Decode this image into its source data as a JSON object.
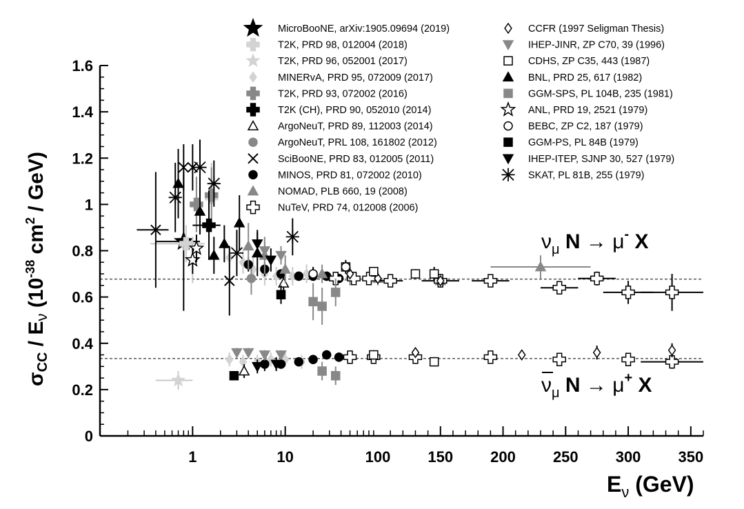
{
  "chart_data": {
    "type": "scatter",
    "title": "",
    "ylabel_parts": {
      "sigma": "σ",
      "cc": "CC",
      "mid": " / E",
      "nu": "ν",
      "open": " (10",
      "exp": "-38",
      "rest": " cm",
      "sq": "2",
      "end": " / GeV)"
    },
    "xlabel_parts": {
      "e": "E",
      "nu": "ν",
      "rest": " (GeV)"
    },
    "ylim": [
      0,
      1.6
    ],
    "xaxis": {
      "log_range": [
        0.1,
        100
      ],
      "linear_range": [
        100,
        360
      ],
      "ticks_log": [
        "1",
        "10",
        "100"
      ],
      "ticks_lin": [
        "150",
        "200",
        "250",
        "300",
        "350"
      ]
    },
    "yticks": [
      "0",
      "0.2",
      "0.4",
      "0.6",
      "0.8",
      "1",
      "1.2",
      "1.4",
      "1.6"
    ],
    "reference_lines": [
      {
        "name": "neutrino",
        "y": 0.677
      },
      {
        "name": "antineutrino",
        "y": 0.334
      }
    ],
    "annotations": {
      "nu": {
        "nu": "ν",
        "sub": "μ",
        "n": " N ",
        "arrow": "→",
        "mu": " μ",
        "sup": "-",
        "x": " X"
      },
      "nubar": {
        "nu": "ν",
        "sub": "μ",
        "n": " N ",
        "arrow": "→",
        "mu": " μ",
        "sup": "+",
        "x": " X"
      }
    },
    "legend_left": [
      "MicroBooNE, arXiv:1905.09694 (2019)",
      "T2K, PRD 98, 012004 (2018)",
      "T2K, PRD 96, 052001 (2017)",
      "MINERvA, PRD 95, 072009 (2017)",
      "T2K, PRD 93, 072002  (2016)",
      "T2K (CH), PRD 90, 052010 (2014)",
      "ArgoNeuT, PRD 89, 112003 (2014)",
      "ArgoNeuT, PRL 108, 161802 (2012)",
      "SciBooNE, PRD 83, 012005 (2011)",
      "MINOS, PRD 81, 072002 (2010)",
      "NOMAD, PLB 660, 19 (2008)",
      "NuTeV, PRD 74, 012008 (2006)"
    ],
    "legend_right": [
      "CCFR (1997 Seligman Thesis)",
      "IHEP-JINR, ZP C70, 39 (1996)",
      "CDHS, ZP C35, 443 (1987)",
      "BNL, PRD 25, 617 (1982)",
      "GGM-SPS, PL 104B, 235 (1981)",
      "ANL, PRD 19, 2521 (1979)",
      "BEBC, ZP C2, 187 (1979)",
      "GGM-PS, PL 84B (1979)",
      "IHEP-ITEP, SJNP 30, 527 (1979)",
      "SKAT, PL 81B, 255 (1979)"
    ],
    "series": [
      {
        "name": "MicroBooNE, arXiv:1905.09694 (2019)",
        "points": [
          {
            "x": 0.8,
            "y": 0.84,
            "ey": 0.3,
            "ex": 0.4
          }
        ]
      },
      {
        "name": "T2K, PRD 98, 012004 (2018)",
        "points": [
          {
            "x": 0.85,
            "y": 0.83,
            "ey": 0.08,
            "ex": 0.5
          },
          {
            "x": 1.6,
            "y": 1.03,
            "ey": 0.15,
            "ex": 0.25
          }
        ]
      },
      {
        "name": "T2K, PRD 96, 052001 (2017)",
        "points": [
          {
            "x": 0.7,
            "y": 0.24,
            "ey": 0.04,
            "ex": 0.3
          },
          {
            "x": 1.0,
            "y": 0.76,
            "ey": 0.1,
            "ex": 0.1
          }
        ]
      },
      {
        "name": "MINERvA, PRD 95, 072009 (2017)",
        "points": [
          {
            "x": 2.5,
            "y": 0.77,
            "ey": 0.05
          },
          {
            "x": 3.5,
            "y": 0.75,
            "ey": 0.05
          },
          {
            "x": 4.5,
            "y": 0.72,
            "ey": 0.05
          },
          {
            "x": 6,
            "y": 0.7,
            "ey": 0.05
          },
          {
            "x": 8,
            "y": 0.69,
            "ey": 0.04
          },
          {
            "x": 12,
            "y": 0.69,
            "ey": 0.04
          },
          {
            "x": 17,
            "y": 0.7,
            "ey": 0.04
          },
          {
            "x": 2.5,
            "y": 0.33,
            "ey": 0.03
          },
          {
            "x": 3.5,
            "y": 0.32,
            "ey": 0.03
          },
          {
            "x": 5,
            "y": 0.32,
            "ey": 0.03
          },
          {
            "x": 7,
            "y": 0.33,
            "ey": 0.03
          },
          {
            "x": 10,
            "y": 0.33,
            "ey": 0.03
          },
          {
            "x": 15,
            "y": 0.32,
            "ey": 0.03
          }
        ]
      },
      {
        "name": "T2K, PRD 93, 072002  (2016)",
        "points": [
          {
            "x": 1.1,
            "y": 1.0,
            "ey": 0.12
          },
          {
            "x": 1.6,
            "y": 1.04,
            "ey": 0.12
          }
        ]
      },
      {
        "name": "T2K (CH), PRD 90, 052010 (2014)",
        "points": [
          {
            "x": 1.5,
            "y": 0.91,
            "ey": 0.15,
            "ex": 0.5
          }
        ]
      },
      {
        "name": "ArgoNeuT, PRD 89, 112003 (2014)",
        "points": [
          {
            "x": 3.6,
            "y": 0.28,
            "ey": 0.03
          },
          {
            "x": 9.6,
            "y": 0.66,
            "ey": 0.05
          }
        ]
      },
      {
        "name": "ArgoNeuT, PRL 108, 161802 (2012)",
        "points": [
          {
            "x": 4.3,
            "y": 0.68,
            "ey": 0.07
          }
        ]
      },
      {
        "name": "SciBooNE, PRD 83, 012005 (2011)",
        "points": [
          {
            "x": 0.4,
            "y": 0.89,
            "ey": 0.25,
            "ex": 0.15
          },
          {
            "x": 0.8,
            "y": 1.16,
            "ey": 0.1
          },
          {
            "x": 1.0,
            "y": 1.16,
            "ey": 0.1
          },
          {
            "x": 2.5,
            "y": 0.67,
            "ey": 0.15
          }
        ]
      },
      {
        "name": "MINOS, PRD 81, 072002 (2010)",
        "points": [
          {
            "x": 4,
            "y": 0.74,
            "ey": 0.03
          },
          {
            "x": 6,
            "y": 0.72,
            "ey": 0.03
          },
          {
            "x": 9,
            "y": 0.7,
            "ey": 0.02
          },
          {
            "x": 14,
            "y": 0.69,
            "ey": 0.02
          },
          {
            "x": 20,
            "y": 0.69,
            "ey": 0.02
          },
          {
            "x": 28,
            "y": 0.69,
            "ey": 0.02
          },
          {
            "x": 38,
            "y": 0.68,
            "ey": 0.02
          },
          {
            "x": 6,
            "y": 0.31,
            "ey": 0.03
          },
          {
            "x": 9,
            "y": 0.31,
            "ey": 0.02
          },
          {
            "x": 14,
            "y": 0.32,
            "ey": 0.02
          },
          {
            "x": 20,
            "y": 0.33,
            "ey": 0.02
          },
          {
            "x": 28,
            "y": 0.35,
            "ey": 0.02
          },
          {
            "x": 38,
            "y": 0.34,
            "ey": 0.02
          }
        ]
      },
      {
        "name": "NOMAD, PLB 660, 19 (2008)",
        "points": [
          {
            "x": 4,
            "y": 0.82,
            "ey": 0.1
          },
          {
            "x": 6,
            "y": 0.78,
            "ey": 0.08
          },
          {
            "x": 10,
            "y": 0.72,
            "ey": 0.06
          },
          {
            "x": 25,
            "y": 0.7,
            "ey": 0.04
          },
          {
            "x": 50,
            "y": 0.69,
            "ey": 0.04
          },
          {
            "x": 100,
            "y": 0.68,
            "ey": 0.03
          },
          {
            "x": 150,
            "y": 0.67,
            "ey": 0.03
          },
          {
            "x": 230,
            "y": 0.73,
            "ey": 0.05,
            "ex": 40
          }
        ]
      },
      {
        "name": "NuTeV, PRD 74, 012008 (2006)",
        "points": [
          {
            "x": 35,
            "y": 0.68,
            "ey": 0.02
          },
          {
            "x": 55,
            "y": 0.68,
            "ey": 0.02
          },
          {
            "x": 80,
            "y": 0.68,
            "ey": 0.02
          },
          {
            "x": 110,
            "y": 0.67,
            "ey": 0.02,
            "ex": 10
          },
          {
            "x": 150,
            "y": 0.67,
            "ey": 0.02,
            "ex": 15
          },
          {
            "x": 190,
            "y": 0.67,
            "ey": 0.02,
            "ex": 15
          },
          {
            "x": 245,
            "y": 0.64,
            "ey": 0.02,
            "ex": 15
          },
          {
            "x": 275,
            "y": 0.68,
            "ey": 0.03,
            "ex": 15
          },
          {
            "x": 300,
            "y": 0.62,
            "ey": 0.05,
            "ex": 20
          },
          {
            "x": 335,
            "y": 0.62,
            "ey": 0.08,
            "ex": 25
          },
          {
            "x": 50,
            "y": 0.34,
            "ey": 0.02
          },
          {
            "x": 90,
            "y": 0.34,
            "ey": 0.02
          },
          {
            "x": 130,
            "y": 0.34,
            "ey": 0.02
          },
          {
            "x": 190,
            "y": 0.34,
            "ey": 0.02
          },
          {
            "x": 245,
            "y": 0.33,
            "ey": 0.02
          },
          {
            "x": 300,
            "y": 0.33,
            "ey": 0.02
          },
          {
            "x": 335,
            "y": 0.32,
            "ey": 0.03,
            "ex": 25
          }
        ]
      },
      {
        "name": "CCFR (1997 Seligman Thesis)",
        "points": [
          {
            "x": 50,
            "y": 0.7,
            "ey": 0.02
          },
          {
            "x": 100,
            "y": 0.68,
            "ey": 0.02
          },
          {
            "x": 150,
            "y": 0.67,
            "ey": 0.02
          },
          {
            "x": 130,
            "y": 0.36,
            "ey": 0.02
          },
          {
            "x": 215,
            "y": 0.35,
            "ey": 0.02
          },
          {
            "x": 275,
            "y": 0.36,
            "ey": 0.03
          },
          {
            "x": 335,
            "y": 0.37,
            "ey": 0.03
          }
        ]
      },
      {
        "name": "IHEP-JINR, ZP C70, 39 (1996)",
        "points": [
          {
            "x": 6,
            "y": 0.8,
            "ey": 0.04
          },
          {
            "x": 9,
            "y": 0.78,
            "ey": 0.04
          },
          {
            "x": 3,
            "y": 0.36,
            "ey": 0.02
          },
          {
            "x": 4,
            "y": 0.36,
            "ey": 0.02
          },
          {
            "x": 6,
            "y": 0.35,
            "ey": 0.02
          },
          {
            "x": 9,
            "y": 0.35,
            "ey": 0.02
          }
        ]
      },
      {
        "name": "CDHS, ZP C35, 443 (1987)",
        "points": [
          {
            "x": 45,
            "y": 0.73,
            "ey": 0.02
          },
          {
            "x": 90,
            "y": 0.71,
            "ey": 0.02
          },
          {
            "x": 130,
            "y": 0.7,
            "ey": 0.02
          },
          {
            "x": 145,
            "y": 0.7,
            "ey": 0.03
          },
          {
            "x": 90,
            "y": 0.35,
            "ey": 0.02
          },
          {
            "x": 145,
            "y": 0.32,
            "ey": 0.02
          }
        ]
      },
      {
        "name": "BNL, PRD 25, 617 (1982)",
        "points": [
          {
            "x": 0.7,
            "y": 1.09,
            "ey": 0.15
          },
          {
            "x": 1.2,
            "y": 0.97,
            "ey": 0.1
          },
          {
            "x": 1.7,
            "y": 0.78,
            "ey": 0.08
          },
          {
            "x": 2.2,
            "y": 0.83,
            "ey": 0.08
          },
          {
            "x": 3.2,
            "y": 0.92,
            "ey": 0.12
          },
          {
            "x": 5,
            "y": 0.79,
            "ey": 0.1
          }
        ]
      },
      {
        "name": "GGM-SPS, PL 104B, 235 (1981)",
        "points": [
          {
            "x": 20,
            "y": 0.58,
            "ey": 0.08
          },
          {
            "x": 25,
            "y": 0.56,
            "ey": 0.08
          },
          {
            "x": 35,
            "y": 0.62,
            "ey": 0.06
          },
          {
            "x": 25,
            "y": 0.28,
            "ey": 0.04
          },
          {
            "x": 35,
            "y": 0.26,
            "ey": 0.04
          }
        ]
      },
      {
        "name": "ANL, PRD 19, 2521 (1979)",
        "points": [
          {
            "x": 1.0,
            "y": 0.76,
            "ey": 0.06
          },
          {
            "x": 1.1,
            "y": 0.81,
            "ey": 0.06
          }
        ]
      },
      {
        "name": "BEBC, ZP C2, 187 (1979)",
        "points": [
          {
            "x": 20,
            "y": 0.7,
            "ey": 0.03
          },
          {
            "x": 45,
            "y": 0.73,
            "ey": 0.03
          }
        ]
      },
      {
        "name": "GGM-PS, PL 84B (1979)",
        "points": [
          {
            "x": 9,
            "y": 0.61,
            "ey": 0.04
          },
          {
            "x": 2.8,
            "y": 0.26,
            "ey": 0.02
          }
        ]
      },
      {
        "name": "IHEP-ITEP, SJNP 30, 527 (1979)",
        "points": [
          {
            "x": 5,
            "y": 0.83,
            "ey": 0.05
          },
          {
            "x": 7,
            "y": 0.76,
            "ey": 0.05
          },
          {
            "x": 5,
            "y": 0.3,
            "ey": 0.03
          },
          {
            "x": 8,
            "y": 0.31,
            "ey": 0.03
          }
        ]
      },
      {
        "name": "SKAT, PL 81B, 255 (1979)",
        "points": [
          {
            "x": 0.65,
            "y": 1.03,
            "ey": 0.15
          },
          {
            "x": 1.2,
            "y": 1.16,
            "ey": 0.12
          },
          {
            "x": 1.7,
            "y": 1.09,
            "ey": 0.1
          },
          {
            "x": 3,
            "y": 0.79,
            "ey": 0.1
          },
          {
            "x": 12,
            "y": 0.86,
            "ey": 0.08
          }
        ]
      }
    ]
  }
}
